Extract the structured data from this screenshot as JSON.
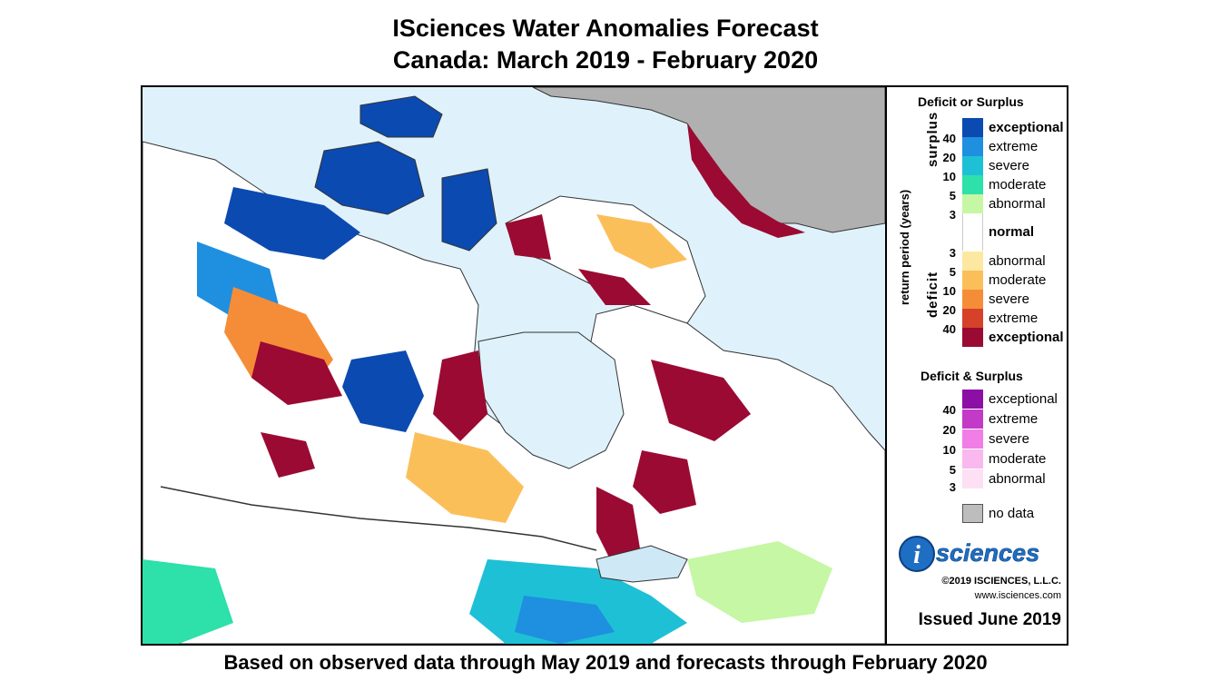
{
  "title": {
    "line1": "ISciences Water Anomalies Forecast",
    "line2": "Canada: March 2019 - February 2020"
  },
  "footer": "Based on observed data through May 2019 and forecasts through February 2020",
  "legend": {
    "deficit_or_surplus_heading": "Deficit or Surplus",
    "deficit_and_surplus_heading": "Deficit & Surplus",
    "axis_label": "return period (years)",
    "surplus_label": "surplus",
    "deficit_label": "deficit",
    "surplus_classes": [
      {
        "label": "exceptional",
        "color": "#0b4ab0",
        "bold": true
      },
      {
        "label": "extreme",
        "color": "#1f8fe0"
      },
      {
        "label": "severe",
        "color": "#1ec0d6"
      },
      {
        "label": "moderate",
        "color": "#2ee0a9"
      },
      {
        "label": "abnormal",
        "color": "#c5f7a4"
      }
    ],
    "surplus_numbers": [
      "40",
      "20",
      "10",
      "5",
      "3"
    ],
    "normal": {
      "label": "normal",
      "color": "#ffffff"
    },
    "deficit_numbers": [
      "3",
      "5",
      "10",
      "20",
      "40"
    ],
    "deficit_classes": [
      {
        "label": "abnormal",
        "color": "#fde8a1"
      },
      {
        "label": "moderate",
        "color": "#fbbf5a"
      },
      {
        "label": "severe",
        "color": "#f58d38"
      },
      {
        "label": "extreme",
        "color": "#d6412a"
      },
      {
        "label": "exceptional",
        "color": "#9b0a32",
        "bold": true
      }
    ],
    "both_classes": [
      {
        "label": "exceptional",
        "color": "#8c0fa5"
      },
      {
        "label": "extreme",
        "color": "#c33ac8"
      },
      {
        "label": "severe",
        "color": "#f07ee6"
      },
      {
        "label": "moderate",
        "color": "#f9b8ee"
      },
      {
        "label": "abnormal",
        "color": "#fde0f4"
      }
    ],
    "both_numbers": [
      "40",
      "20",
      "10",
      "5",
      "3"
    ],
    "no_data": {
      "label": "no data",
      "color": "#bdbdbd"
    },
    "logo_text": "sciences",
    "logo_letter": "i",
    "copyright": "©2019 ISCIENCES, L.L.C.",
    "website": "www.isciences.com",
    "issued": "Issued June 2019"
  },
  "map_colors": {
    "water": "#dff2fb",
    "land_normal": "#ffffff",
    "greenland": "#b0b0b0",
    "border": "#333333"
  }
}
